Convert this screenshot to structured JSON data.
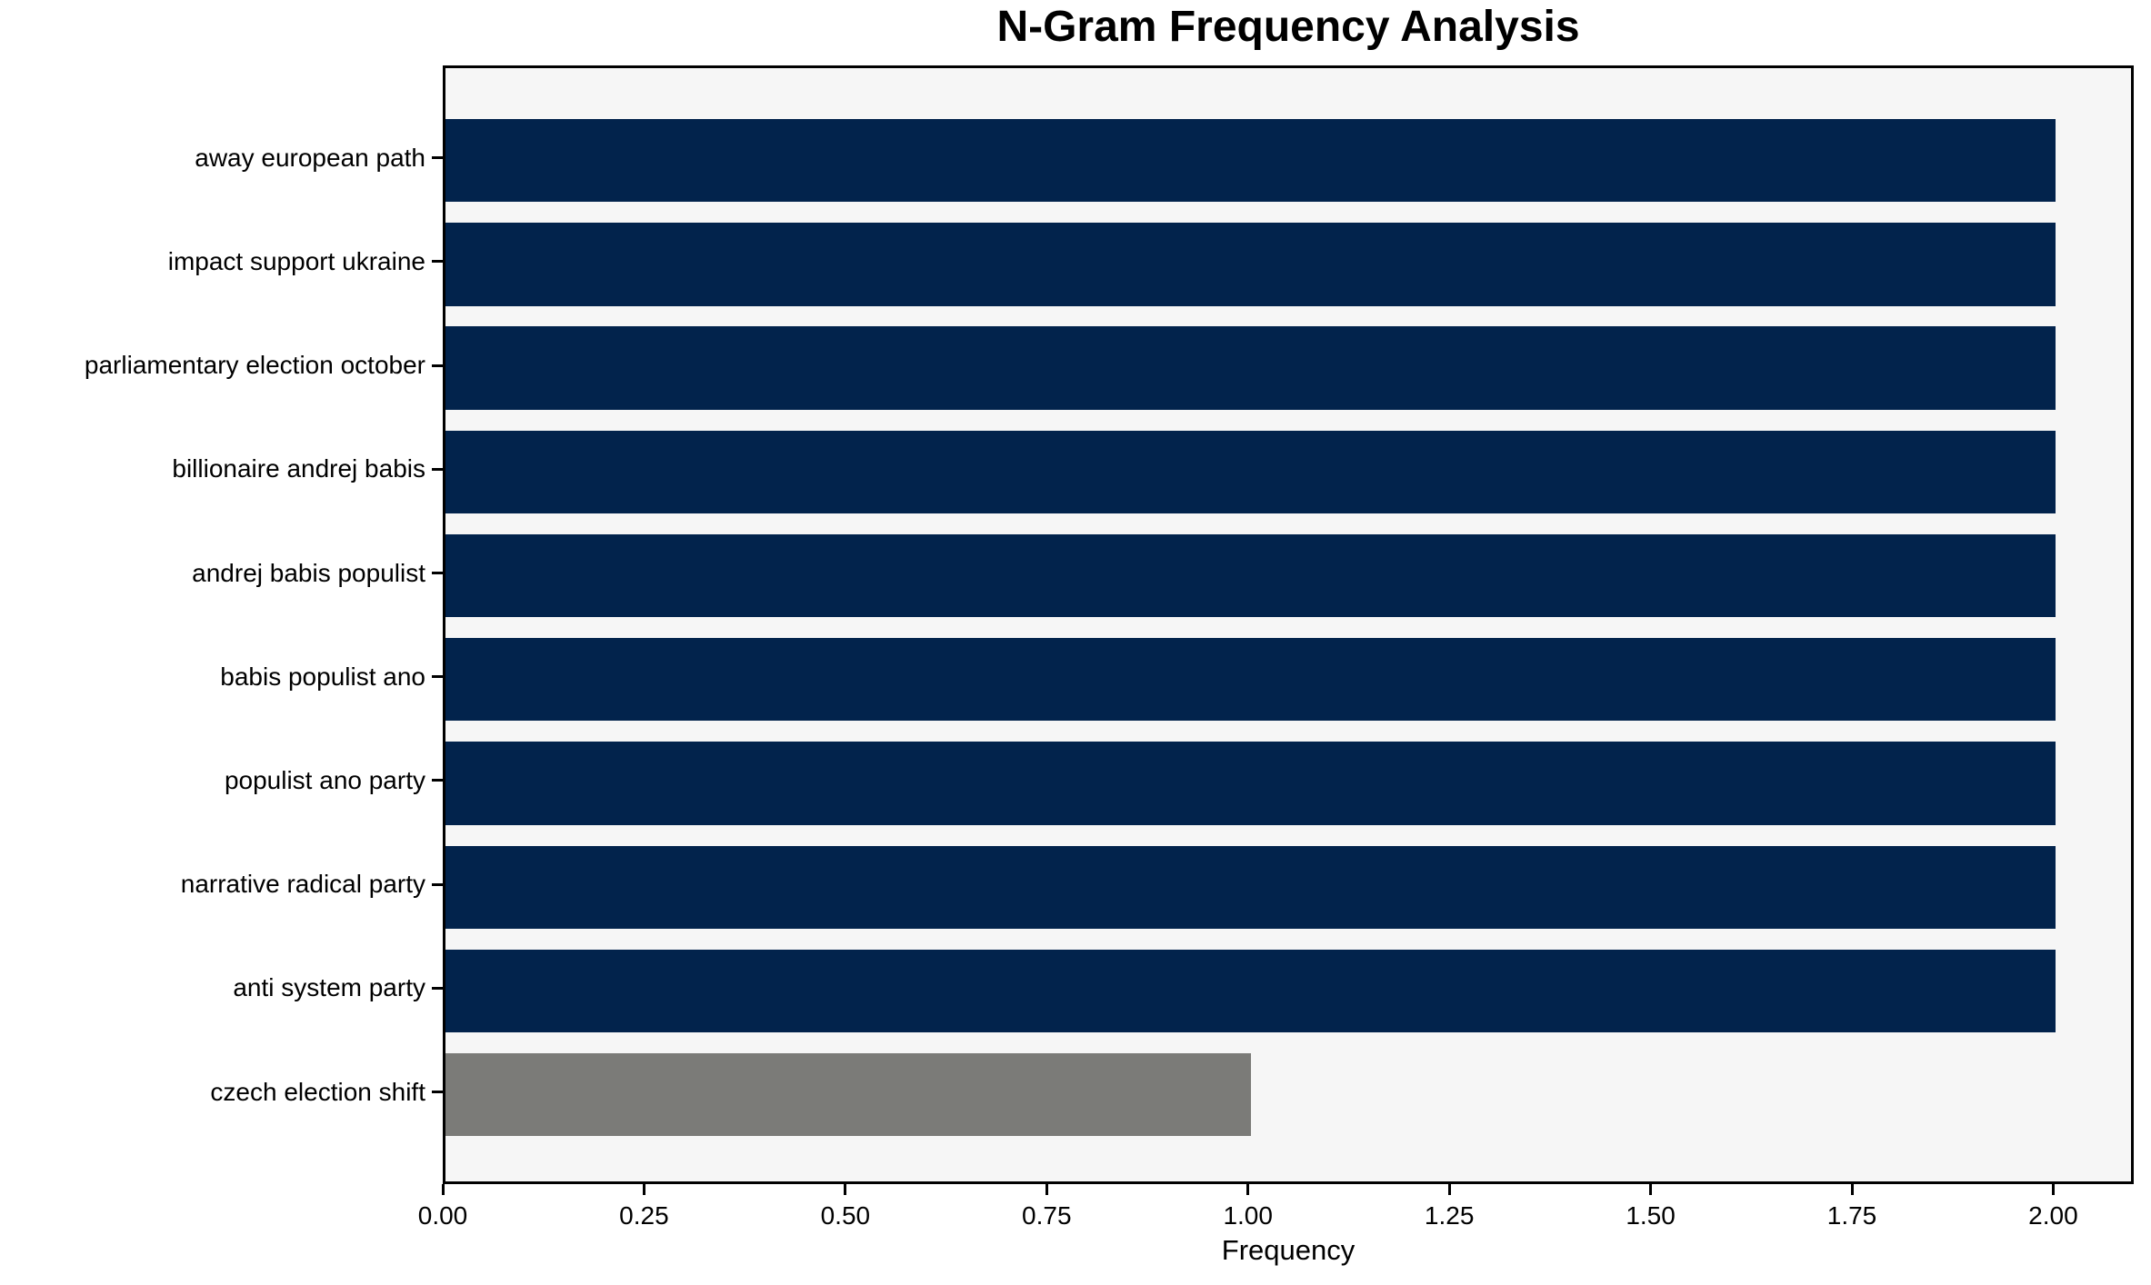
{
  "title": "N-Gram Frequency Analysis",
  "chart_data": {
    "type": "bar",
    "orientation": "horizontal",
    "title": "N-Gram Frequency Analysis",
    "xlabel": "Frequency",
    "ylabel": "",
    "categories": [
      "away european path",
      "impact support ukraine",
      "parliamentary election october",
      "billionaire andrej babis",
      "andrej babis populist",
      "babis populist ano",
      "populist ano party",
      "narrative radical party",
      "anti system party",
      "czech election shift"
    ],
    "values": [
      2,
      2,
      2,
      2,
      2,
      2,
      2,
      2,
      2,
      1
    ],
    "bar_colors": [
      "#02234c",
      "#02234c",
      "#02234c",
      "#02234c",
      "#02234c",
      "#02234c",
      "#02234c",
      "#02234c",
      "#02234c",
      "#7b7b78"
    ],
    "xlim": [
      0,
      2.1
    ],
    "x_ticks": [
      0,
      0.25,
      0.5,
      0.75,
      1.0,
      1.25,
      1.5,
      1.75,
      2.0
    ],
    "x_tick_labels": [
      "0.00",
      "0.25",
      "0.50",
      "0.75",
      "1.00",
      "1.25",
      "1.50",
      "1.75",
      "2.00"
    ],
    "grid": false,
    "legend": "none",
    "colors": {
      "bar_primary": "#02234c",
      "bar_secondary": "#7b7b78",
      "plot_background": "#f6f6f6",
      "figure_background": "#ffffff",
      "text": "#000000",
      "spine": "#000000"
    }
  }
}
